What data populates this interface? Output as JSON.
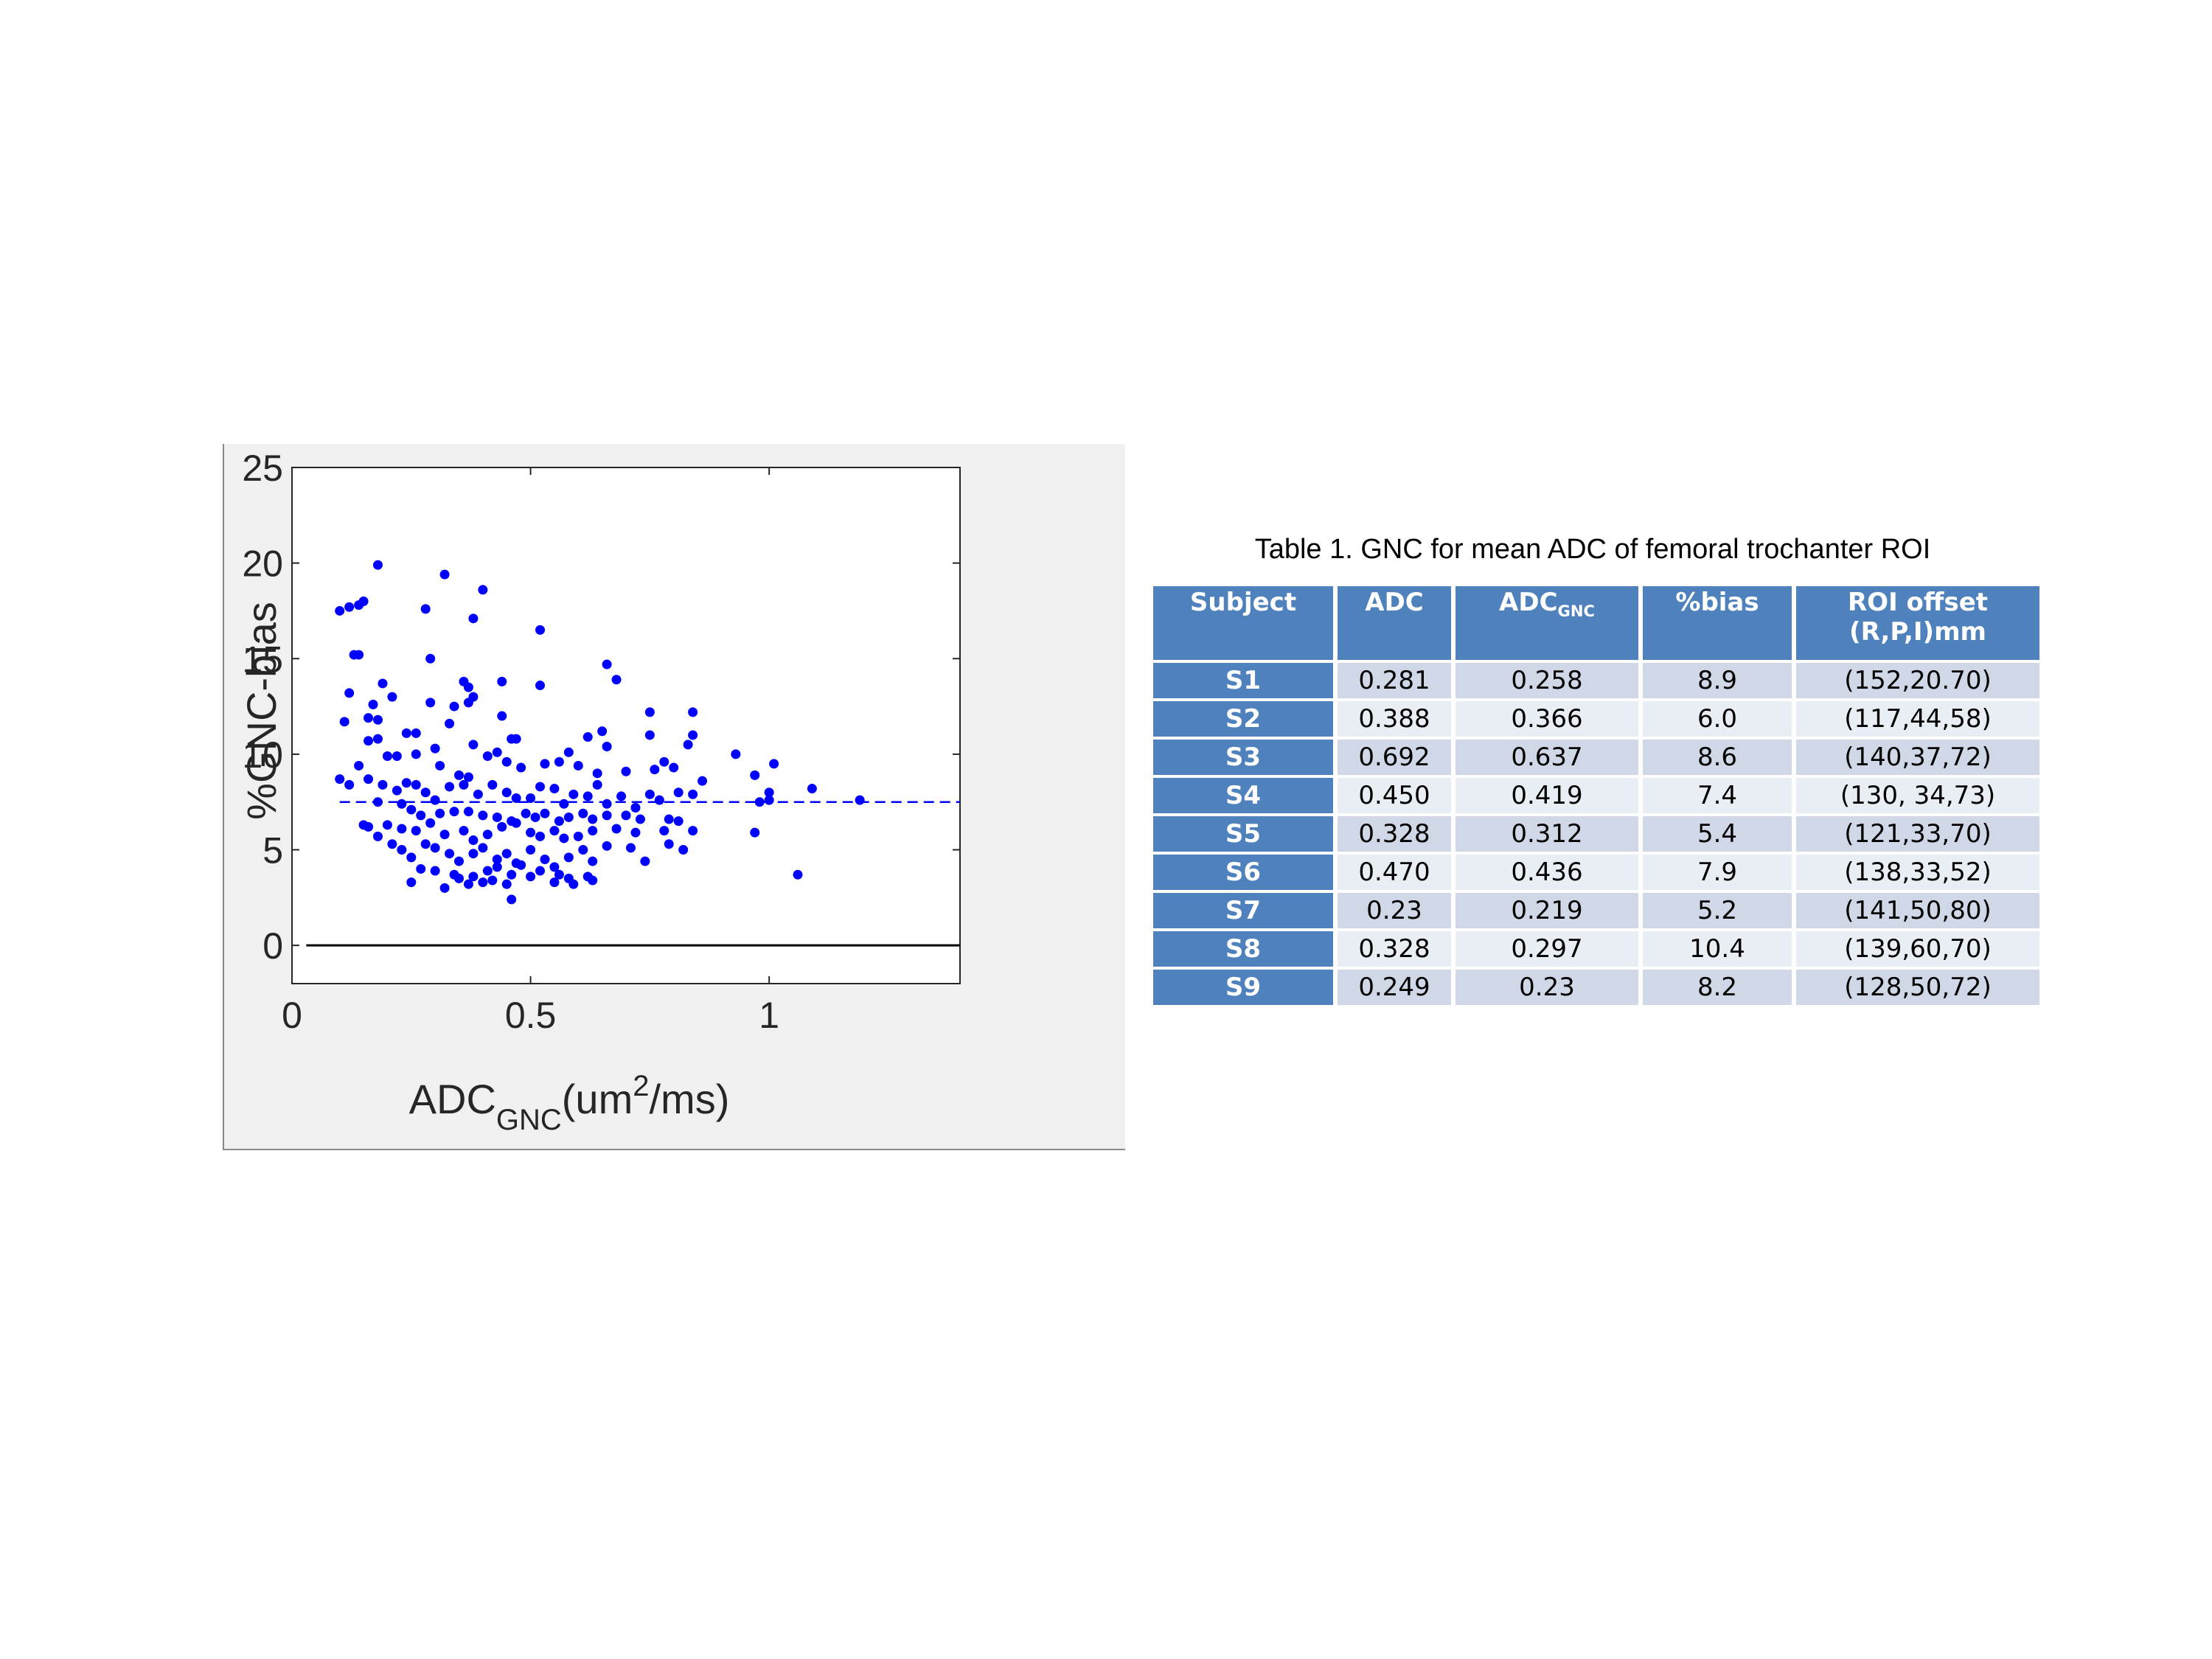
{
  "chart_data": {
    "type": "scatter",
    "title": "",
    "xlabel": "ADC",
    "xlabel_sub": "GNC",
    "xlabel_unit_pre": "(um",
    "xlabel_unit_sup": "2",
    "xlabel_unit_post": "/ms)",
    "ylabel": "%GNC-bias",
    "xlim": [
      0,
      1.4
    ],
    "ylim": [
      -2,
      25
    ],
    "xticks": [
      {
        "v": 0,
        "label": "0"
      },
      {
        "v": 0.5,
        "label": "0.5"
      },
      {
        "v": 1,
        "label": "1"
      }
    ],
    "yticks": [
      {
        "v": 0,
        "label": "0"
      },
      {
        "v": 5,
        "label": "5"
      },
      {
        "v": 10,
        "label": "10"
      },
      {
        "v": 15,
        "label": "15"
      },
      {
        "v": 20,
        "label": "20"
      },
      {
        "v": 25,
        "label": "25"
      }
    ],
    "mean_line": 7.5,
    "zero_line": 0,
    "zero_line_xrange": [
      0.03,
      1.4
    ],
    "mean_line_xrange": [
      0.1,
      1.4
    ],
    "point_color": "#0000ff",
    "series": [
      {
        "points": [
          [
            0.1,
            17.5
          ],
          [
            0.12,
            17.7
          ],
          [
            0.14,
            17.8
          ],
          [
            0.15,
            18.0
          ],
          [
            0.18,
            19.9
          ],
          [
            0.32,
            19.4
          ],
          [
            0.4,
            18.6
          ],
          [
            0.28,
            17.6
          ],
          [
            0.38,
            17.1
          ],
          [
            0.52,
            16.5
          ],
          [
            0.13,
            15.2
          ],
          [
            0.14,
            15.2
          ],
          [
            0.29,
            15.0
          ],
          [
            0.66,
            14.7
          ],
          [
            0.68,
            13.9
          ],
          [
            0.36,
            13.8
          ],
          [
            0.37,
            13.5
          ],
          [
            0.38,
            13.0
          ],
          [
            0.44,
            13.8
          ],
          [
            0.52,
            13.6
          ],
          [
            0.12,
            13.2
          ],
          [
            0.17,
            12.6
          ],
          [
            0.19,
            13.7
          ],
          [
            0.21,
            13.0
          ],
          [
            0.29,
            12.7
          ],
          [
            0.34,
            12.5
          ],
          [
            0.37,
            12.7
          ],
          [
            0.44,
            12.0
          ],
          [
            0.75,
            12.2
          ],
          [
            0.84,
            12.2
          ],
          [
            0.11,
            11.7
          ],
          [
            0.16,
            11.9
          ],
          [
            0.18,
            11.8
          ],
          [
            0.24,
            11.1
          ],
          [
            0.26,
            11.1
          ],
          [
            0.33,
            11.6
          ],
          [
            0.46,
            10.8
          ],
          [
            0.47,
            10.8
          ],
          [
            0.62,
            10.9
          ],
          [
            0.65,
            11.2
          ],
          [
            0.75,
            11.0
          ],
          [
            0.84,
            11.0
          ],
          [
            0.16,
            10.7
          ],
          [
            0.18,
            10.8
          ],
          [
            0.3,
            10.3
          ],
          [
            0.38,
            10.5
          ],
          [
            0.43,
            10.1
          ],
          [
            0.58,
            10.1
          ],
          [
            0.66,
            10.4
          ],
          [
            0.83,
            10.5
          ],
          [
            0.93,
            10.0
          ],
          [
            1.01,
            9.5
          ],
          [
            0.2,
            9.9
          ],
          [
            0.22,
            9.9
          ],
          [
            0.26,
            10.0
          ],
          [
            0.31,
            9.4
          ],
          [
            0.35,
            8.9
          ],
          [
            0.37,
            8.8
          ],
          [
            0.41,
            9.9
          ],
          [
            0.45,
            9.6
          ],
          [
            0.48,
            9.3
          ],
          [
            0.53,
            9.5
          ],
          [
            0.56,
            9.6
          ],
          [
            0.6,
            9.4
          ],
          [
            0.64,
            9.0
          ],
          [
            0.7,
            9.1
          ],
          [
            0.76,
            9.2
          ],
          [
            0.78,
            9.6
          ],
          [
            0.8,
            9.3
          ],
          [
            0.97,
            8.9
          ],
          [
            0.12,
            8.4
          ],
          [
            0.14,
            9.4
          ],
          [
            0.16,
            8.7
          ],
          [
            0.19,
            8.4
          ],
          [
            0.22,
            8.1
          ],
          [
            0.24,
            8.5
          ],
          [
            0.26,
            8.4
          ],
          [
            0.28,
            8.0
          ],
          [
            0.3,
            7.6
          ],
          [
            0.33,
            8.3
          ],
          [
            0.36,
            8.4
          ],
          [
            0.39,
            7.9
          ],
          [
            0.42,
            8.4
          ],
          [
            0.45,
            8.0
          ],
          [
            0.47,
            7.7
          ],
          [
            0.5,
            7.7
          ],
          [
            0.52,
            8.3
          ],
          [
            0.55,
            8.2
          ],
          [
            0.57,
            7.4
          ],
          [
            0.59,
            7.9
          ],
          [
            0.62,
            7.8
          ],
          [
            0.64,
            8.4
          ],
          [
            0.66,
            7.4
          ],
          [
            0.69,
            7.8
          ],
          [
            0.72,
            7.2
          ],
          [
            0.75,
            7.9
          ],
          [
            0.77,
            7.6
          ],
          [
            0.81,
            8.0
          ],
          [
            0.84,
            7.9
          ],
          [
            0.86,
            8.6
          ],
          [
            1.0,
            8.0
          ],
          [
            1.09,
            8.2
          ],
          [
            1.19,
            7.6
          ],
          [
            0.98,
            7.5
          ],
          [
            1.0,
            7.6
          ],
          [
            0.1,
            8.7
          ],
          [
            0.18,
            7.5
          ],
          [
            0.23,
            7.4
          ],
          [
            0.25,
            7.1
          ],
          [
            0.27,
            6.8
          ],
          [
            0.31,
            6.9
          ],
          [
            0.34,
            7.0
          ],
          [
            0.37,
            7.0
          ],
          [
            0.4,
            6.8
          ],
          [
            0.43,
            6.7
          ],
          [
            0.46,
            6.5
          ],
          [
            0.49,
            6.9
          ],
          [
            0.51,
            6.7
          ],
          [
            0.53,
            6.9
          ],
          [
            0.56,
            6.5
          ],
          [
            0.58,
            6.7
          ],
          [
            0.61,
            6.9
          ],
          [
            0.63,
            6.6
          ],
          [
            0.66,
            6.8
          ],
          [
            0.7,
            6.8
          ],
          [
            0.73,
            6.6
          ],
          [
            0.79,
            6.6
          ],
          [
            0.81,
            6.5
          ],
          [
            0.15,
            6.3
          ],
          [
            0.16,
            6.2
          ],
          [
            0.2,
            6.3
          ],
          [
            0.23,
            6.1
          ],
          [
            0.26,
            6.0
          ],
          [
            0.29,
            6.4
          ],
          [
            0.32,
            5.8
          ],
          [
            0.36,
            6.0
          ],
          [
            0.38,
            5.5
          ],
          [
            0.41,
            5.8
          ],
          [
            0.44,
            6.2
          ],
          [
            0.47,
            6.4
          ],
          [
            0.5,
            5.9
          ],
          [
            0.52,
            5.7
          ],
          [
            0.55,
            6.0
          ],
          [
            0.57,
            5.6
          ],
          [
            0.6,
            5.7
          ],
          [
            0.63,
            6.0
          ],
          [
            0.68,
            6.1
          ],
          [
            0.72,
            5.9
          ],
          [
            0.78,
            6.0
          ],
          [
            0.84,
            6.0
          ],
          [
            0.97,
            5.9
          ],
          [
            0.18,
            5.7
          ],
          [
            0.21,
            5.3
          ],
          [
            0.23,
            5.0
          ],
          [
            0.25,
            4.6
          ],
          [
            0.28,
            5.3
          ],
          [
            0.3,
            5.1
          ],
          [
            0.33,
            4.8
          ],
          [
            0.35,
            4.4
          ],
          [
            0.38,
            4.8
          ],
          [
            0.4,
            5.1
          ],
          [
            0.43,
            4.5
          ],
          [
            0.45,
            4.8
          ],
          [
            0.47,
            4.3
          ],
          [
            0.5,
            5.0
          ],
          [
            0.53,
            4.5
          ],
          [
            0.55,
            4.1
          ],
          [
            0.58,
            4.6
          ],
          [
            0.61,
            5.0
          ],
          [
            0.63,
            4.4
          ],
          [
            0.66,
            5.2
          ],
          [
            0.71,
            5.1
          ],
          [
            0.74,
            4.4
          ],
          [
            0.79,
            5.3
          ],
          [
            0.82,
            5.0
          ],
          [
            0.27,
            4.0
          ],
          [
            0.3,
            3.9
          ],
          [
            0.34,
            3.7
          ],
          [
            0.38,
            3.6
          ],
          [
            0.41,
            3.9
          ],
          [
            0.43,
            4.1
          ],
          [
            0.46,
            3.7
          ],
          [
            0.48,
            4.2
          ],
          [
            0.5,
            3.6
          ],
          [
            0.52,
            3.9
          ],
          [
            0.56,
            3.7
          ],
          [
            0.58,
            3.5
          ],
          [
            0.62,
            3.6
          ],
          [
            0.25,
            3.3
          ],
          [
            0.32,
            3.0
          ],
          [
            0.37,
            3.2
          ],
          [
            0.4,
            3.3
          ],
          [
            0.42,
            3.4
          ],
          [
            0.45,
            3.2
          ],
          [
            0.55,
            3.3
          ],
          [
            0.59,
            3.2
          ],
          [
            0.63,
            3.4
          ],
          [
            0.46,
            2.4
          ],
          [
            1.06,
            3.7
          ],
          [
            0.35,
            3.5
          ]
        ]
      }
    ]
  },
  "table": {
    "caption": "Table 1. GNC for mean ADC of femoral trochanter ROI",
    "headers": {
      "subject": "Subject",
      "adc": "ADC",
      "adc_gnc_main": "ADC",
      "adc_gnc_sub": "GNC",
      "bias": "%bias",
      "roi_line1": "ROI offset",
      "roi_line2": "(R,P,I)mm"
    },
    "rows": [
      {
        "subject": "S1",
        "adc": "0.281",
        "adc_gnc": "0.258",
        "bias": "8.9",
        "roi": "(152,20.70)"
      },
      {
        "subject": "S2",
        "adc": "0.388",
        "adc_gnc": "0.366",
        "bias": "6.0",
        "roi": "(117,44,58)"
      },
      {
        "subject": "S3",
        "adc": "0.692",
        "adc_gnc": "0.637",
        "bias": "8.6",
        "roi": "(140,37,72)"
      },
      {
        "subject": "S4",
        "adc": "0.450",
        "adc_gnc": "0.419",
        "bias": "7.4",
        "roi": "(130, 34,73)"
      },
      {
        "subject": "S5",
        "adc": "0.328",
        "adc_gnc": "0.312",
        "bias": "5.4",
        "roi": "(121,33,70)"
      },
      {
        "subject": "S6",
        "adc": "0.470",
        "adc_gnc": "0.436",
        "bias": "7.9",
        "roi": "(138,33,52)"
      },
      {
        "subject": "S7",
        "adc": "0.23",
        "adc_gnc": "0.219",
        "bias": "5.2",
        "roi": "(141,50,80)"
      },
      {
        "subject": "S8",
        "adc": "0.328",
        "adc_gnc": "0.297",
        "bias": "10.4",
        "roi": "(139,60,70)"
      },
      {
        "subject": "S9",
        "adc": "0.249",
        "adc_gnc": "0.23",
        "bias": "8.2",
        "roi": "(128,50,72)"
      }
    ]
  }
}
